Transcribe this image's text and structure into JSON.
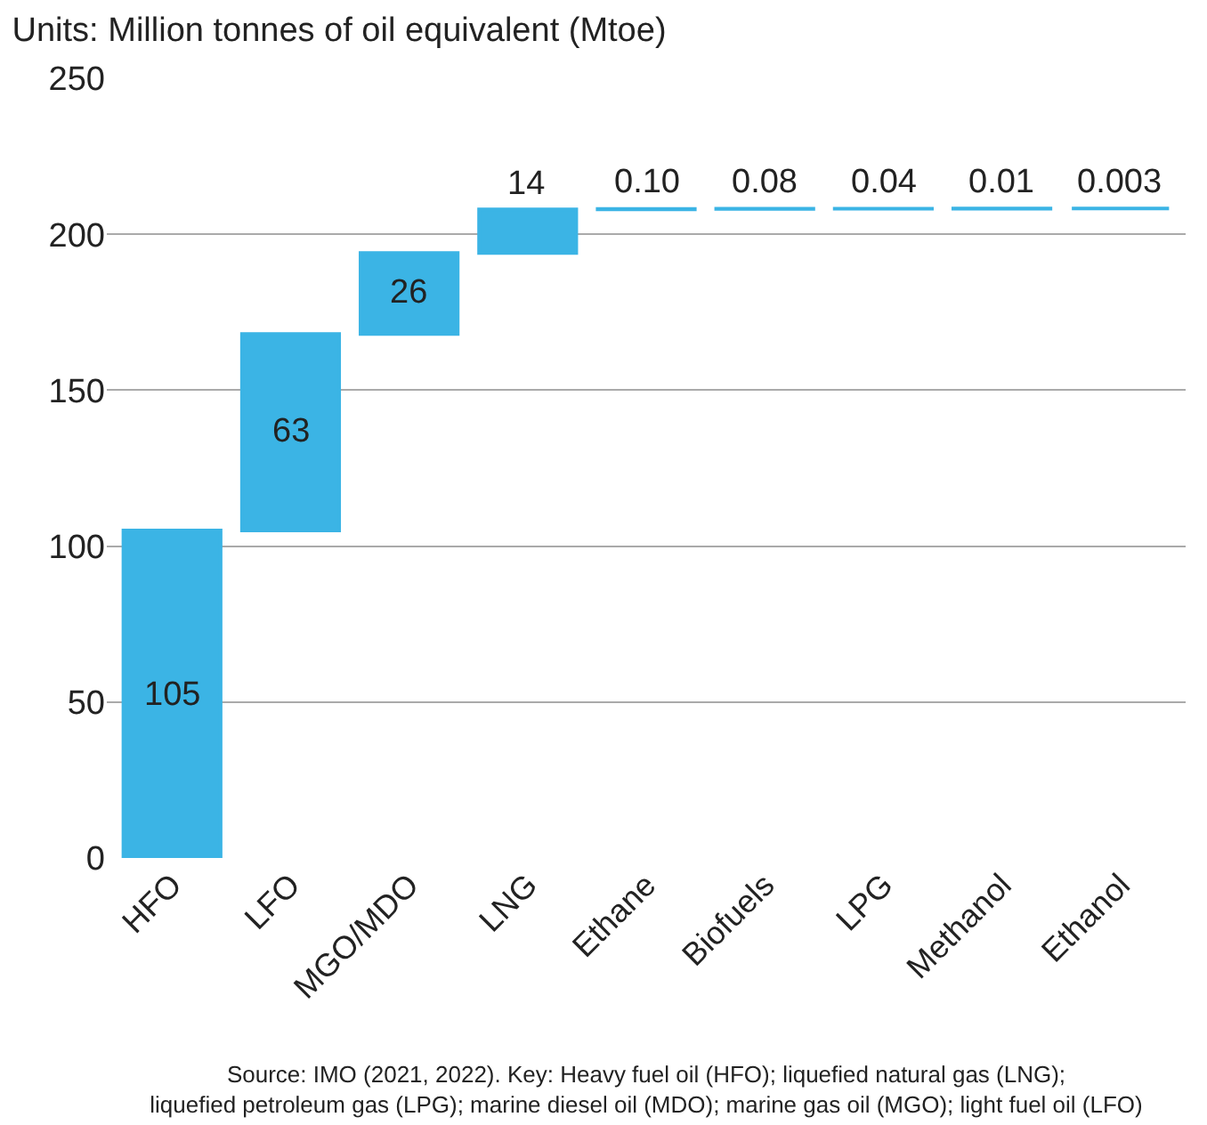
{
  "chart_data": {
    "type": "bar",
    "title": "Units: Million tonnes of oil equivalent (Mtoe)",
    "categories": [
      "HFO",
      "LFO",
      "MGO/MDO",
      "LNG",
      "Ethane",
      "Biofuels",
      "LPG",
      "Methanol",
      "Ethanol"
    ],
    "values": [
      105,
      63,
      26,
      14,
      0.1,
      0.08,
      0.04,
      0.01,
      0.003
    ],
    "base": [
      0,
      105,
      168,
      194,
      208,
      208.1,
      208.18,
      208.22,
      208.23
    ],
    "value_labels": [
      "105",
      "63",
      "26",
      "14",
      "0.10",
      "0.08",
      "0.04",
      "0.01",
      "0.003"
    ],
    "color": "#3bb4e5",
    "ylim": [
      0,
      250
    ],
    "yticks": [
      0,
      50,
      100,
      150,
      200,
      250
    ],
    "grid": "y",
    "annotations": [
      "Source: IMO (2021, 2022). Key: Heavy fuel oil (HFO); liquefied natural gas (LNG); liquefied petroleum gas (LPG); marine diesel oil (MDO); marine gas oil (MGO); light fuel oil (LFO)"
    ]
  }
}
